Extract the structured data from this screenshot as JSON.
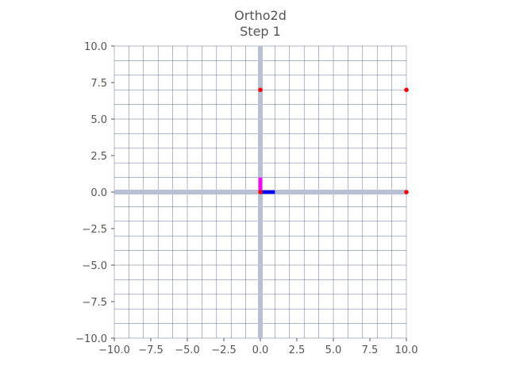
{
  "chart_data": {
    "type": "scatter",
    "title": "Ortho2d",
    "subtitle": "Step 1",
    "xlabel": "",
    "ylabel": "",
    "xlim": [
      -10,
      10
    ],
    "ylim": [
      -10,
      10
    ],
    "grid": true,
    "x_ticks": [
      "−10.0",
      "−7.5",
      "−5.0",
      "−2.5",
      "0.0",
      "2.5",
      "5.0",
      "7.5",
      "10.0"
    ],
    "y_ticks": [
      "10.0",
      "7.5",
      "5.0",
      "2.5",
      "0.0",
      "−2.5",
      "−5.0",
      "−7.5",
      "−10.0"
    ],
    "x_tick_values": [
      -10,
      -7.5,
      -5,
      -2.5,
      0,
      2.5,
      5,
      7.5,
      10
    ],
    "y_tick_values": [
      10,
      7.5,
      5,
      2.5,
      0,
      -2.5,
      -5,
      -7.5,
      -10
    ],
    "points": [
      {
        "x": 0,
        "y": 7,
        "color": "#ff0000"
      },
      {
        "x": 10,
        "y": 7,
        "color": "#ff0000"
      },
      {
        "x": 10,
        "y": 0,
        "color": "#ff0000"
      },
      {
        "x": 0,
        "y": 0,
        "color": "#ff0000"
      }
    ],
    "vectors": [
      {
        "x0": 0,
        "y0": 0,
        "x1": 1,
        "y1": 0,
        "color": "#0000ff"
      },
      {
        "x0": 0,
        "y0": 0,
        "x1": 0,
        "y1": 1,
        "color": "#ff00ff"
      }
    ],
    "colors": {
      "grid": "#2f3f7f",
      "axis": "#b8c0d6",
      "text": "#555555"
    }
  }
}
